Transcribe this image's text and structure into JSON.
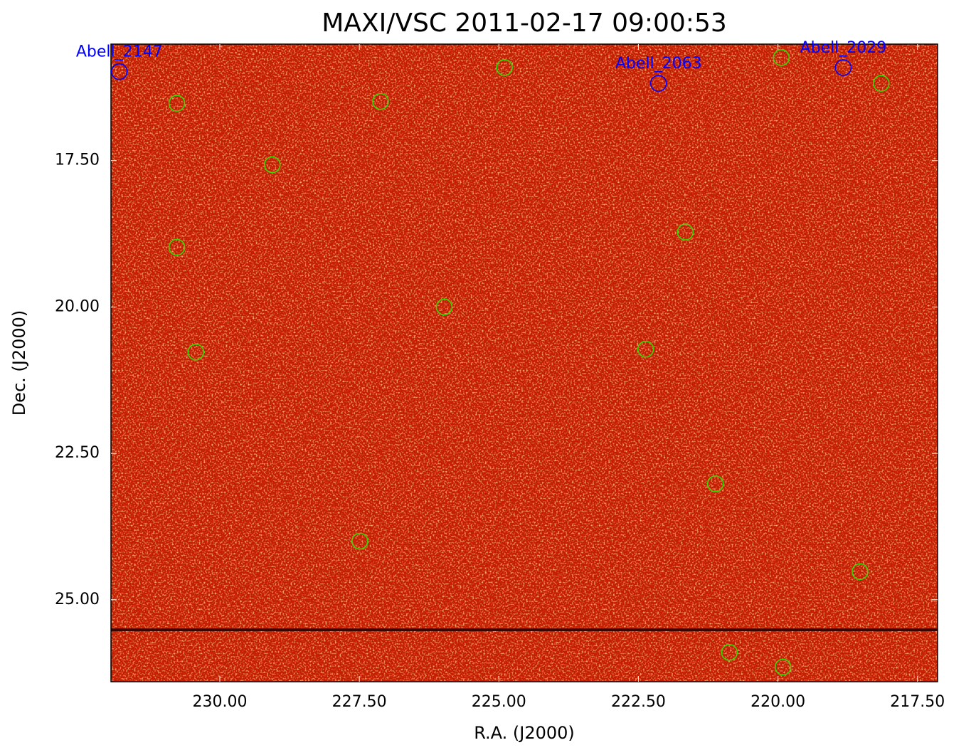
{
  "chart_data": {
    "type": "scatter",
    "title": "MAXI/VSC 2011-02-17 09:00:53",
    "x_label": "R.A. (J2000)",
    "y_label": "Dec. (J2000)",
    "xlim": [
      231.95,
      217.14
    ],
    "ylim": [
      15.51,
      26.4
    ],
    "y_inverted": true,
    "xticks": [
      {
        "value": 230,
        "label": "230.00"
      },
      {
        "value": 227.5,
        "label": "227.50"
      },
      {
        "value": 225,
        "label": "225.00"
      },
      {
        "value": 222.5,
        "label": "222.50"
      },
      {
        "value": 220,
        "label": "220.00"
      },
      {
        "value": 217.5,
        "label": "217.50"
      }
    ],
    "yticks": [
      {
        "value": 17.5,
        "label": "17.50"
      },
      {
        "value": 20,
        "label": "20.00"
      },
      {
        "value": 22.5,
        "label": "22.50"
      },
      {
        "value": 25,
        "label": "25.00"
      }
    ],
    "series": [
      {
        "color": "#33dd00",
        "x": [
          230.77,
          227.12,
          224.9,
          219.94,
          218.15,
          229.06,
          230.77,
          221.66,
          225.98,
          230.43,
          222.37,
          221.12,
          227.49,
          218.53,
          220.87,
          219.91
        ],
        "y": [
          16.52,
          16.49,
          15.91,
          15.74,
          16.18,
          17.57,
          18.98,
          18.72,
          20.0,
          20.77,
          20.72,
          23.02,
          24.0,
          24.52,
          25.9,
          26.15
        ]
      },
      {
        "color": "#0000ff",
        "labels": [
          "Abell_2147",
          "Abell_2063",
          "Abell_2029"
        ],
        "x": [
          231.8,
          222.14,
          218.83
        ],
        "y": [
          15.98,
          16.18,
          15.91
        ]
      }
    ]
  }
}
